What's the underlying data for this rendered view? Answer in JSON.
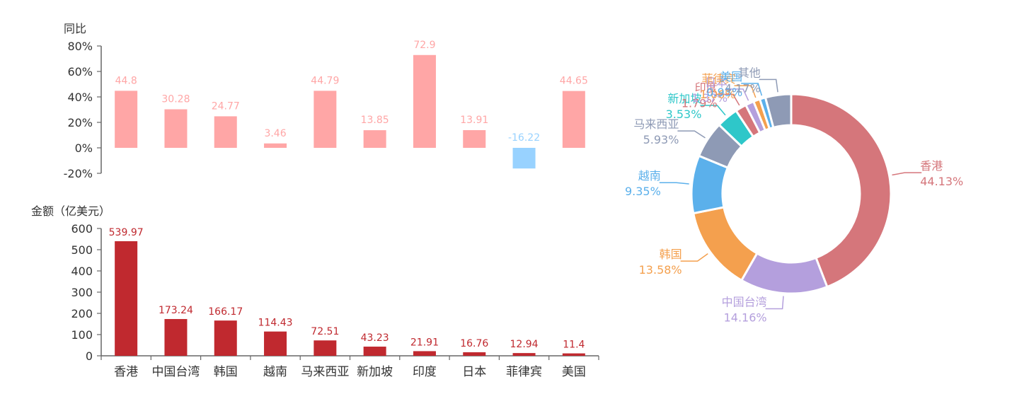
{
  "colors": {
    "yoy_positive": "#FFA6A6",
    "yoy_negative": "#98D2FF",
    "amount_bar": "#C0292F",
    "amount_label": "#C0292F",
    "axis": "#666666",
    "text": "#333333"
  },
  "chart_data": [
    {
      "type": "bar",
      "id": "yoy",
      "ylabel": "同比",
      "categories": [
        "香港",
        "中国台湾",
        "韩国",
        "越南",
        "马来西亚",
        "新加坡",
        "印度",
        "日本",
        "菲律宾",
        "美国"
      ],
      "values": [
        44.8,
        30.28,
        24.77,
        3.46,
        44.79,
        13.85,
        72.9,
        13.91,
        -16.22,
        44.65
      ],
      "value_labels": [
        "44.8",
        "30.28",
        "24.77",
        "3.46",
        "44.79",
        "13.85",
        "72.9",
        "13.91",
        "-16.22",
        "44.65"
      ],
      "ylim": [
        -20,
        80
      ],
      "yticks": [
        -20,
        0,
        20,
        40,
        60,
        80
      ],
      "ytick_labels": [
        "-20%",
        "0%",
        "20%",
        "40%",
        "60%",
        "80%"
      ]
    },
    {
      "type": "bar",
      "id": "amount",
      "ylabel": "金额（亿美元）",
      "categories": [
        "香港",
        "中国台湾",
        "韩国",
        "越南",
        "马来西亚",
        "新加坡",
        "印度",
        "日本",
        "菲律宾",
        "美国"
      ],
      "category_labels": [
        "香港",
        "中国台湾",
        "韩国",
        "越南",
        "马来西亚",
        "新加坡",
        "印度",
        "日本",
        "菲律宾",
        "美国"
      ],
      "values": [
        539.97,
        173.24,
        166.17,
        114.43,
        72.51,
        43.23,
        21.91,
        16.76,
        12.94,
        11.4
      ],
      "value_labels": [
        "539.97",
        "173.24",
        "166.17",
        "114.43",
        "72.51",
        "43.23",
        "21.91",
        "16.76",
        "12.94",
        "11.4"
      ],
      "ylim": [
        0,
        600
      ],
      "yticks": [
        0,
        100,
        200,
        300,
        400,
        500,
        600
      ],
      "ytick_labels": [
        "0",
        "100",
        "200",
        "300",
        "400",
        "500",
        "600"
      ]
    },
    {
      "type": "pie",
      "id": "share",
      "donut": true,
      "slices": [
        {
          "name": "香港",
          "value": 44.13,
          "label": "44.13%",
          "color": "#D5767B"
        },
        {
          "name": "中国台湾",
          "value": 14.16,
          "label": "14.16%",
          "color": "#B49FDD"
        },
        {
          "name": "韩国",
          "value": 13.58,
          "label": "13.58%",
          "color": "#F4A04E"
        },
        {
          "name": "越南",
          "value": 9.35,
          "label": "9.35%",
          "color": "#5BB0EB"
        },
        {
          "name": "马来西亚",
          "value": 5.93,
          "label": "5.93%",
          "color": "#8E9AB5"
        },
        {
          "name": "新加坡",
          "value": 3.53,
          "label": "3.53%",
          "color": "#2EC7C9"
        },
        {
          "name": "印度",
          "value": 1.79,
          "label": "1.79%",
          "color": "#D5767B"
        },
        {
          "name": "日本",
          "value": 1.37,
          "label": "1.37%",
          "color": "#B49FDD"
        },
        {
          "name": "菲律宾",
          "value": 1.06,
          "label": "1.06%",
          "color": "#F4A04E"
        },
        {
          "name": "美国",
          "value": 0.93,
          "label": "0.93%",
          "color": "#5BB0EB"
        },
        {
          "name": "其他",
          "value": 4.17,
          "label": "4.17%",
          "color": "#8E9AB5"
        }
      ]
    }
  ]
}
